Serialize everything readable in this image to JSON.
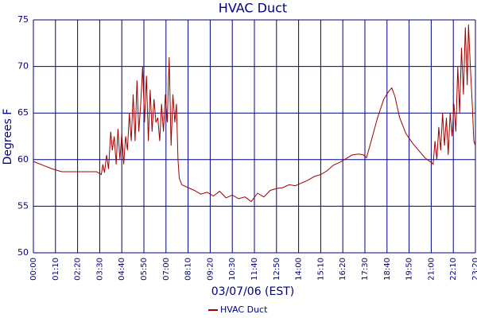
{
  "chart_data": {
    "type": "line",
    "title": "HVAC Duct",
    "x_label": "03/07/06 (EST)",
    "y_label": "Degrees F",
    "x": [
      0,
      30,
      60,
      90,
      150,
      200,
      215,
      220,
      225,
      232,
      238,
      245,
      250,
      256,
      262,
      268,
      274,
      280,
      286,
      292,
      298,
      304,
      310,
      316,
      322,
      328,
      334,
      340,
      346,
      352,
      358,
      364,
      370,
      376,
      382,
      388,
      394,
      400,
      406,
      412,
      418,
      424,
      430,
      436,
      442,
      448,
      453,
      458,
      462,
      470,
      490,
      510,
      530,
      550,
      570,
      590,
      610,
      630,
      650,
      670,
      690,
      710,
      730,
      750,
      770,
      790,
      810,
      830,
      850,
      870,
      890,
      910,
      930,
      950,
      970,
      990,
      1010,
      1030,
      1045,
      1055,
      1070,
      1090,
      1110,
      1125,
      1135,
      1145,
      1160,
      1180,
      1200,
      1220,
      1240,
      1260,
      1266,
      1272,
      1278,
      1284,
      1290,
      1296,
      1302,
      1308,
      1314,
      1320,
      1326,
      1332,
      1338,
      1344,
      1350,
      1356,
      1362,
      1368,
      1374,
      1378,
      1384,
      1390,
      1395,
      1400
    ],
    "series": [
      {
        "name": "HVAC Duct",
        "color": "#a00000",
        "values": [
          59.8,
          59.4,
          59,
          58.7,
          58.7,
          58.7,
          58.4,
          59.5,
          58.6,
          60.5,
          59,
          63,
          61,
          62.5,
          59.5,
          63.3,
          60,
          62.8,
          59.5,
          62.5,
          61,
          65,
          62,
          67,
          62,
          68.5,
          63,
          66,
          70,
          64,
          69,
          62,
          67.5,
          63,
          66.5,
          64,
          64.5,
          62,
          66,
          63,
          67,
          64,
          71,
          61.5,
          67,
          64,
          66,
          60,
          58,
          57.3,
          57,
          56.7,
          56.3,
          56.5,
          56.1,
          56.6,
          55.9,
          56.2,
          55.8,
          56,
          55.5,
          56.4,
          56,
          56.7,
          56.9,
          57,
          57.3,
          57.2,
          57.5,
          57.8,
          58.2,
          58.4,
          58.8,
          59.4,
          59.7,
          60.1,
          60.5,
          60.6,
          60.5,
          60.2,
          62,
          64.5,
          66.5,
          67.3,
          67.7,
          66.8,
          64.5,
          62.8,
          61.8,
          61,
          60.2,
          59.7,
          59.5,
          62,
          60,
          63.5,
          61,
          65,
          61.5,
          64.5,
          60.5,
          65,
          62.5,
          66,
          63,
          70,
          65,
          72,
          67,
          74.2,
          68,
          74.5,
          70,
          66,
          62,
          61.5
        ]
      }
    ],
    "xlim": [
      0,
      1400
    ],
    "xticks": [
      {
        "value": 0,
        "label": "00:00"
      },
      {
        "value": 70,
        "label": "01:10"
      },
      {
        "value": 140,
        "label": "02:20"
      },
      {
        "value": 210,
        "label": "03:30"
      },
      {
        "value": 280,
        "label": "04:40"
      },
      {
        "value": 350,
        "label": "05:50"
      },
      {
        "value": 420,
        "label": "07:00"
      },
      {
        "value": 490,
        "label": "08:10"
      },
      {
        "value": 560,
        "label": "09:20"
      },
      {
        "value": 630,
        "label": "10:30"
      },
      {
        "value": 700,
        "label": "11:40"
      },
      {
        "value": 770,
        "label": "12:50"
      },
      {
        "value": 840,
        "label": "14:00"
      },
      {
        "value": 910,
        "label": "15:10"
      },
      {
        "value": 980,
        "label": "16:20"
      },
      {
        "value": 1050,
        "label": "17:30"
      },
      {
        "value": 1120,
        "label": "18:40"
      },
      {
        "value": 1190,
        "label": "19:50"
      },
      {
        "value": 1260,
        "label": "21:00"
      },
      {
        "value": 1330,
        "label": "22:10"
      },
      {
        "value": 1400,
        "label": "23:20"
      }
    ],
    "ylim": [
      50,
      75
    ],
    "yticks": [
      50,
      55,
      60,
      65,
      70,
      75
    ],
    "grid": true,
    "legend": "bottom"
  }
}
